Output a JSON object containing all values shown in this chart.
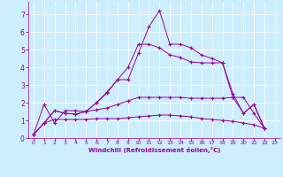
{
  "xlabel": "Windchill (Refroidissement éolien,°C)",
  "background_color": "#cceeff",
  "line_color": "#990099",
  "xlim": [
    -0.5,
    23.5
  ],
  "ylim": [
    0,
    7.7
  ],
  "yticks": [
    0,
    1,
    2,
    3,
    4,
    5,
    6,
    7
  ],
  "xticks": [
    0,
    1,
    2,
    3,
    4,
    5,
    6,
    7,
    8,
    9,
    10,
    11,
    12,
    13,
    14,
    15,
    16,
    17,
    18,
    19,
    20,
    21,
    22,
    23
  ],
  "series1_x": [
    0,
    1,
    2,
    3,
    4,
    5,
    6,
    7,
    8,
    9,
    10,
    11,
    12,
    13,
    14,
    15,
    16,
    17,
    18,
    19,
    20,
    21,
    22
  ],
  "series1_y": [
    0.2,
    1.9,
    0.85,
    1.55,
    1.55,
    1.5,
    2.0,
    2.6,
    3.3,
    3.3,
    4.8,
    6.3,
    7.2,
    5.3,
    5.3,
    5.1,
    4.7,
    4.5,
    4.25,
    2.5,
    1.4,
    1.9,
    0.55
  ],
  "series2_x": [
    0,
    1,
    2,
    3,
    4,
    5,
    6,
    7,
    8,
    9,
    10,
    11,
    12,
    13,
    14,
    15,
    16,
    17,
    18,
    19,
    20,
    21,
    22
  ],
  "series2_y": [
    0.2,
    0.85,
    1.55,
    1.4,
    1.35,
    1.5,
    2.0,
    2.55,
    3.3,
    4.0,
    5.3,
    5.3,
    5.1,
    4.7,
    4.55,
    4.3,
    4.25,
    4.25,
    4.25,
    2.3,
    1.4,
    1.9,
    0.55
  ],
  "series3_x": [
    0,
    1,
    2,
    3,
    4,
    5,
    6,
    7,
    8,
    9,
    10,
    11,
    12,
    13,
    14,
    15,
    16,
    17,
    18,
    19,
    20,
    21,
    22
  ],
  "series3_y": [
    0.2,
    0.85,
    1.55,
    1.4,
    1.35,
    1.5,
    1.6,
    1.7,
    1.9,
    2.1,
    2.3,
    2.3,
    2.3,
    2.3,
    2.3,
    2.25,
    2.25,
    2.25,
    2.25,
    2.3,
    2.3,
    1.4,
    0.55
  ],
  "series4_x": [
    0,
    1,
    2,
    3,
    4,
    5,
    6,
    7,
    8,
    9,
    10,
    11,
    12,
    13,
    14,
    15,
    16,
    17,
    18,
    19,
    20,
    21,
    22
  ],
  "series4_y": [
    0.2,
    0.85,
    1.05,
    1.05,
    1.05,
    1.05,
    1.1,
    1.1,
    1.1,
    1.15,
    1.2,
    1.25,
    1.3,
    1.3,
    1.25,
    1.2,
    1.1,
    1.05,
    1.0,
    0.95,
    0.85,
    0.75,
    0.55
  ]
}
